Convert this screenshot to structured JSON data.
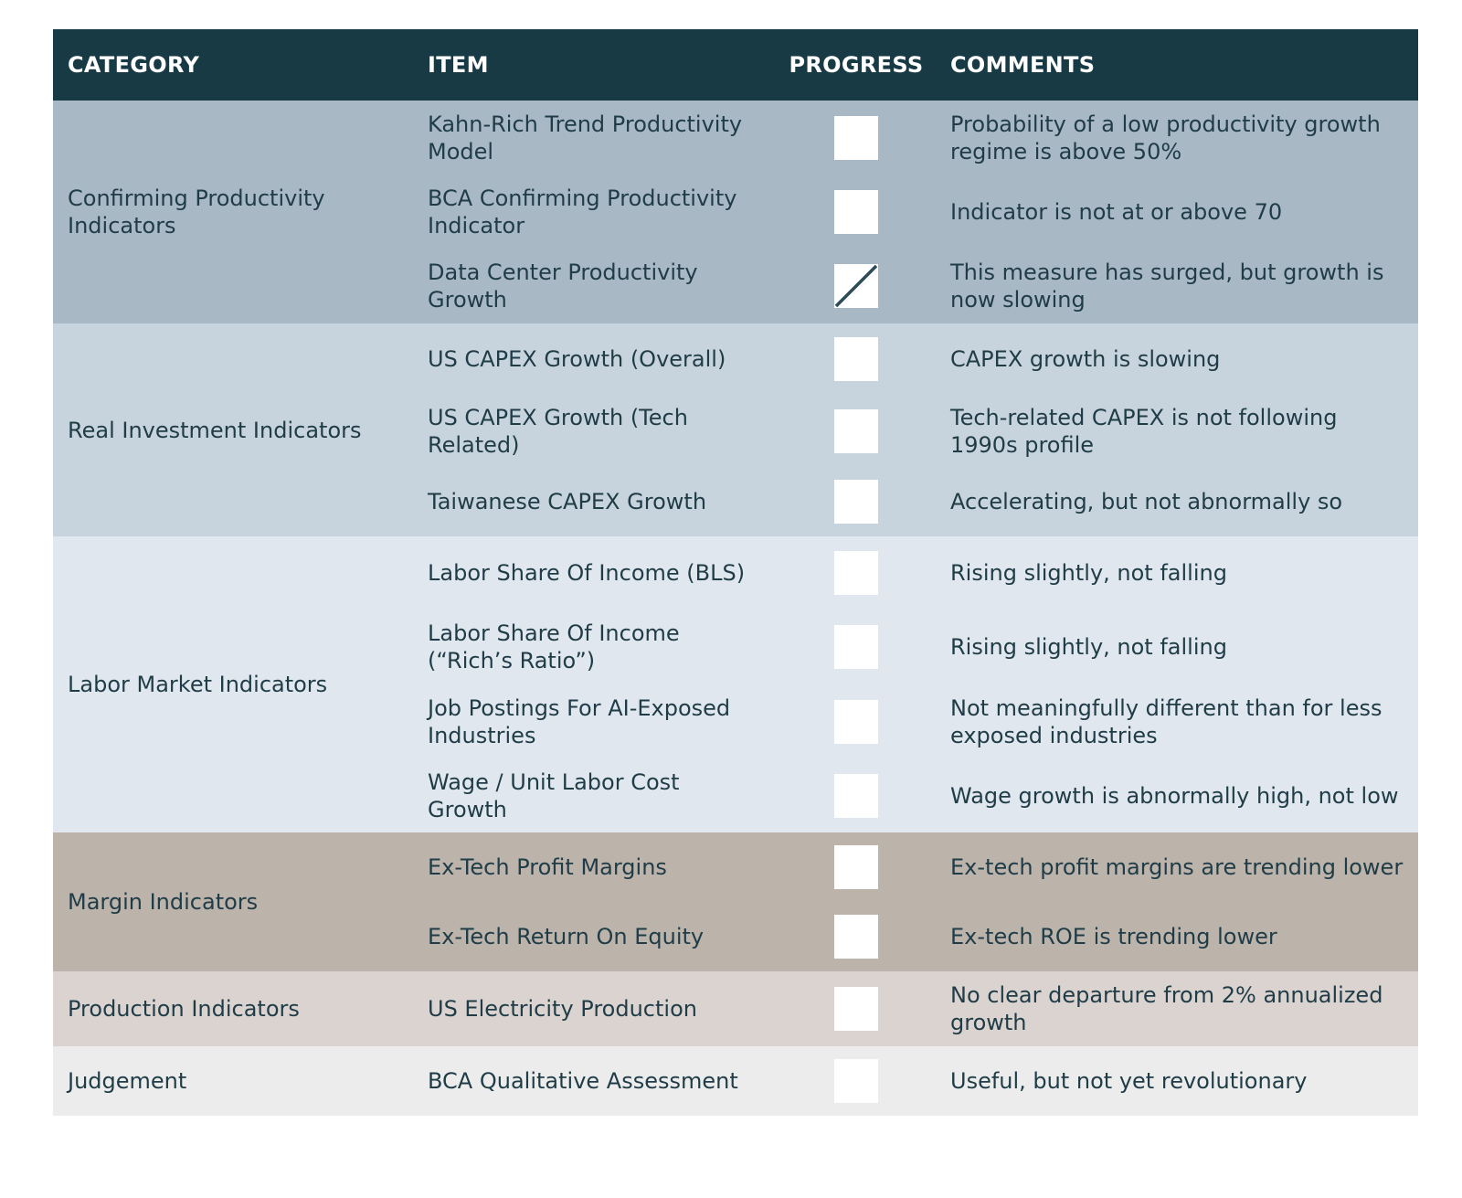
{
  "headers": {
    "category": "CATEGORY",
    "item": "ITEM",
    "progress": "PROGRESS",
    "comments": "COMMENTS"
  },
  "groups": [
    {
      "category": "Confirming Productivity Indicators",
      "color": "#a8b8c5",
      "rows": [
        {
          "item": "Kahn-Rich Trend Productivity Model",
          "progress": "empty",
          "comment": "Probability of a low productivity growth regime is above 50%"
        },
        {
          "item": "BCA Confirming Productivity Indicator",
          "progress": "empty",
          "comment": "Indicator is not at or above 70"
        },
        {
          "item": "Data Center Productivity Growth",
          "progress": "partial-slash",
          "comment": "This measure has surged, but growth is now slowing"
        }
      ]
    },
    {
      "category": "Real Investment Indicators",
      "color": "#c8d4dd",
      "rows": [
        {
          "item": "US CAPEX Growth (Overall)",
          "progress": "empty",
          "comment": "CAPEX growth is slowing"
        },
        {
          "item": "US CAPEX Growth (Tech Related)",
          "progress": "empty",
          "comment": "Tech-related CAPEX is not following 1990s profile"
        },
        {
          "item": "Taiwanese CAPEX Growth",
          "progress": "empty",
          "comment": "Accelerating, but not abnormally so"
        }
      ]
    },
    {
      "category": "Labor Market Indicators",
      "color": "#e1e7ee",
      "rows": [
        {
          "item": "Labor Share Of Income (BLS)",
          "progress": "empty",
          "comment": "Rising slightly, not falling"
        },
        {
          "item": "Labor Share Of Income (“Rich’s Ratio”)",
          "progress": "empty",
          "comment": "Rising slightly, not falling"
        },
        {
          "item": "Job Postings For AI-Exposed Industries",
          "progress": "empty",
          "comment": "Not meaningfully different than for less exposed industries"
        },
        {
          "item": "Wage / Unit Labor Cost Growth",
          "progress": "empty",
          "comment": "Wage growth is abnormally high, not low"
        }
      ]
    },
    {
      "category": "Margin Indicators",
      "color": "#bcb3ab",
      "rows": [
        {
          "item": "Ex-Tech Profit Margins",
          "progress": "empty",
          "comment": "Ex-tech profit margins are trending lower"
        },
        {
          "item": "Ex-Tech Return On Equity",
          "progress": "empty",
          "comment": "Ex-tech ROE is trending lower"
        }
      ]
    },
    {
      "category": "Production Indicators",
      "color": "#dbd3d0",
      "rows": [
        {
          "item": "US Electricity Production",
          "progress": "empty",
          "comment": "No clear departure from 2% annualized growth"
        }
      ]
    },
    {
      "category": "Judgement",
      "color": "#ebeceb",
      "rows": [
        {
          "item": "BCA Qualitative Assessment",
          "progress": "empty",
          "comment": "Useful, but not yet revolutionary"
        }
      ]
    }
  ],
  "slash_color": "#2f4b56"
}
